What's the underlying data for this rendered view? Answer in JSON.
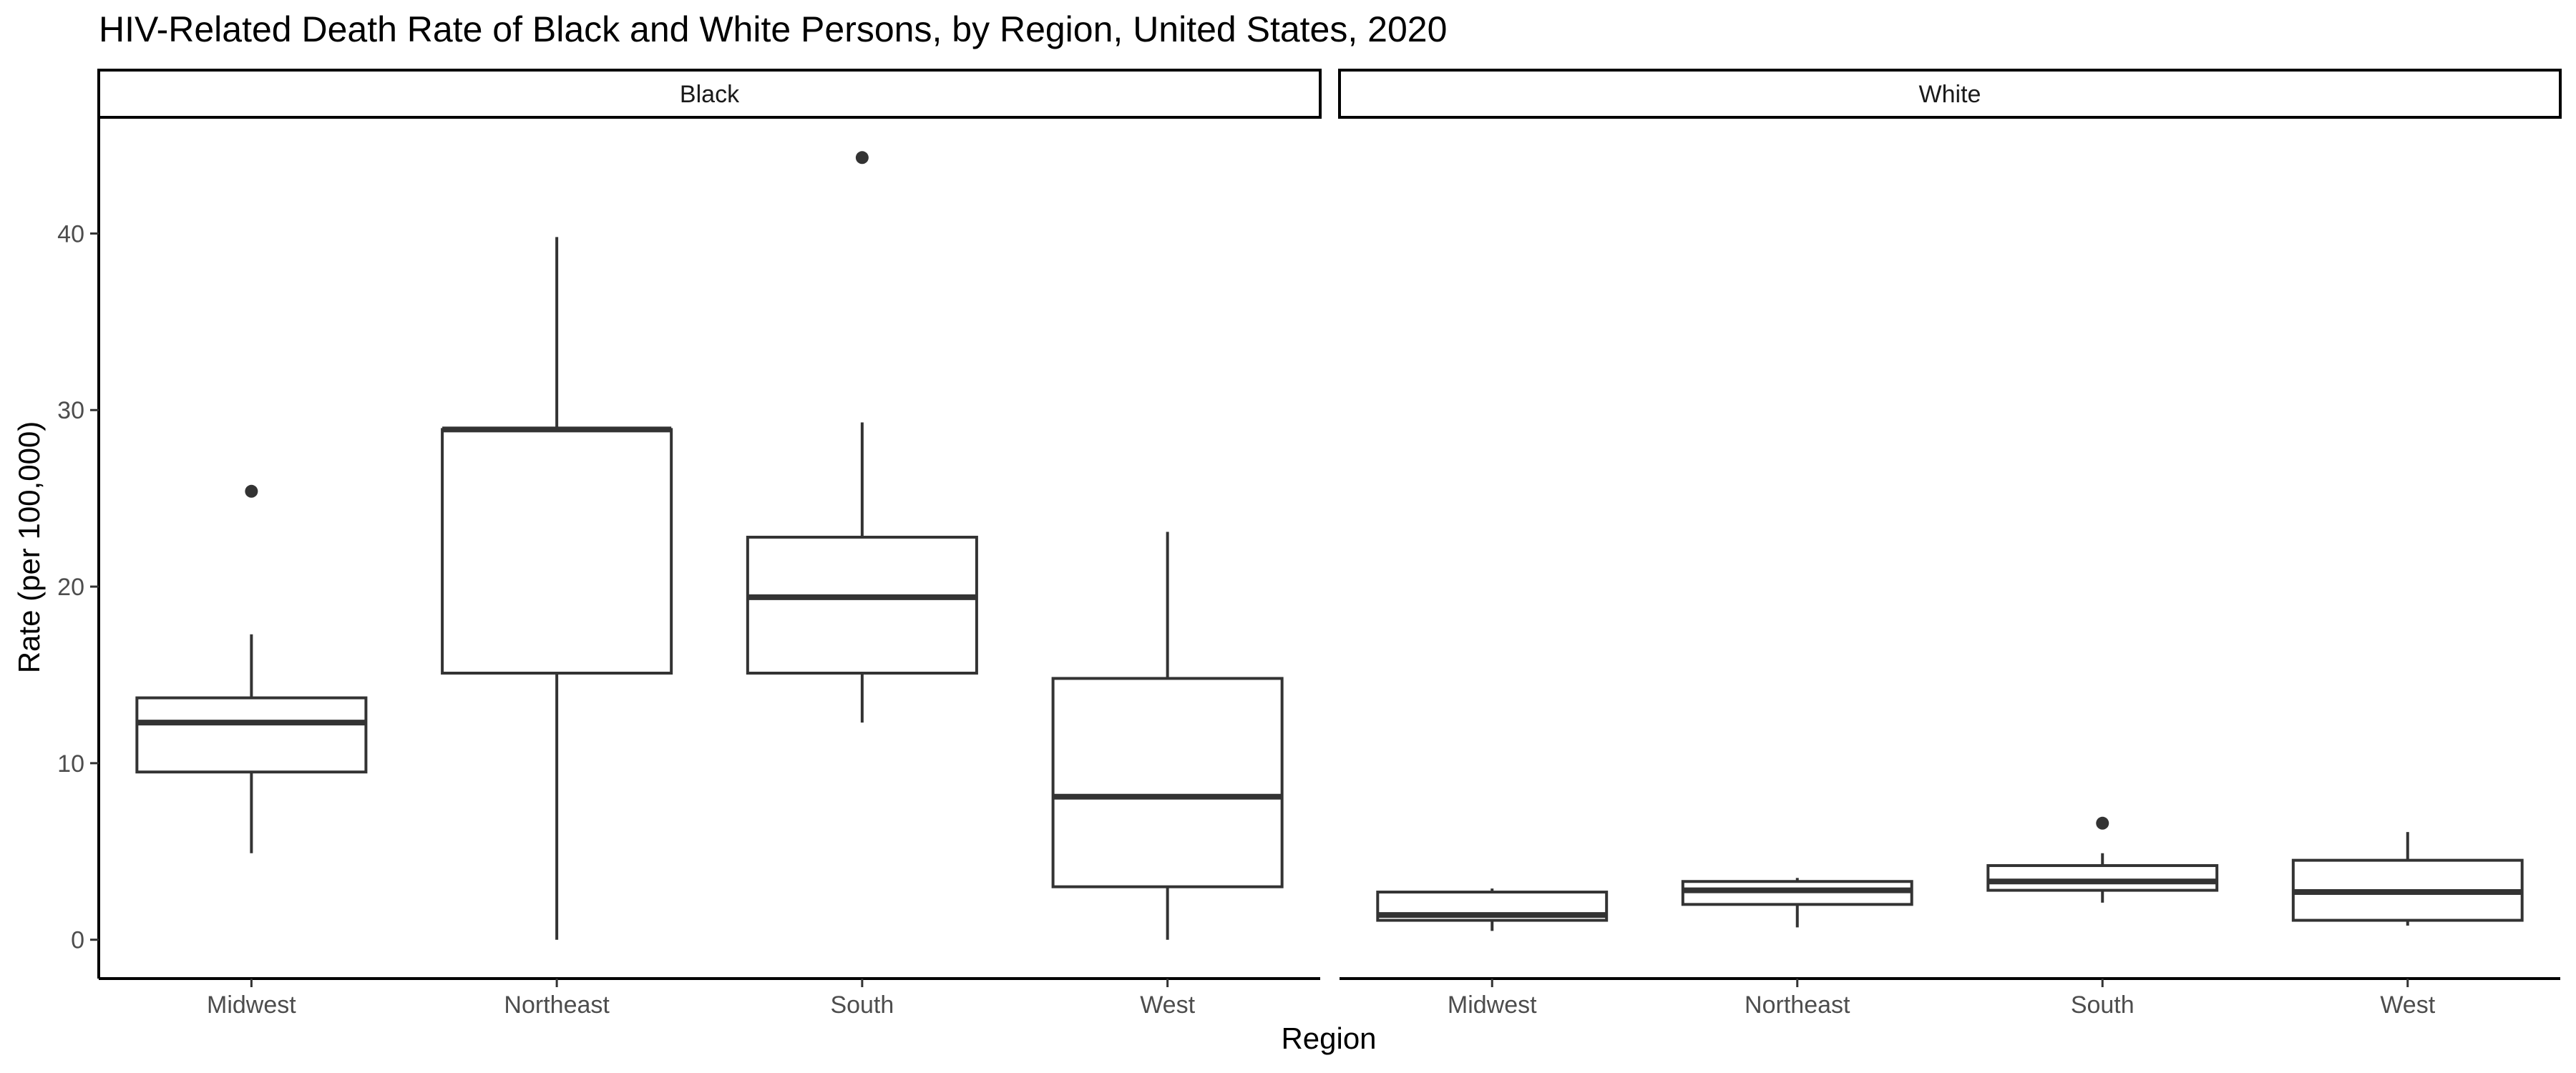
{
  "chart_data": {
    "type": "box",
    "title": "HIV-Related Death Rate of Black and White Persons, by Region, United States, 2020",
    "xlabel": "Region",
    "ylabel": "Rate (per 100,000)",
    "ylim": [
      -2.2,
      46.5
    ],
    "yticks": [
      0,
      10,
      20,
      30,
      40
    ],
    "grid": false,
    "categories": [
      "Midwest",
      "Northeast",
      "South",
      "West"
    ],
    "facets": [
      {
        "name": "Black",
        "boxes": [
          {
            "category": "Midwest",
            "whisker_low": 4.9,
            "q1": 9.5,
            "median": 12.3,
            "q3": 13.7,
            "whisker_high": 17.3,
            "outliers": [
              25.4
            ]
          },
          {
            "category": "Northeast",
            "whisker_low": 0.0,
            "q1": 15.1,
            "median": 28.9,
            "q3": 28.9,
            "whisker_high": 39.8,
            "outliers": []
          },
          {
            "category": "South",
            "whisker_low": 12.3,
            "q1": 15.1,
            "median": 19.4,
            "q3": 22.8,
            "whisker_high": 29.3,
            "outliers": [
              44.3
            ]
          },
          {
            "category": "West",
            "whisker_low": 0.0,
            "q1": 3.0,
            "median": 8.1,
            "q3": 14.8,
            "whisker_high": 23.1,
            "outliers": []
          }
        ]
      },
      {
        "name": "White",
        "boxes": [
          {
            "category": "Midwest",
            "whisker_low": 0.5,
            "q1": 1.1,
            "median": 1.4,
            "q3": 2.7,
            "whisker_high": 2.9,
            "outliers": []
          },
          {
            "category": "Northeast",
            "whisker_low": 0.7,
            "q1": 2.0,
            "median": 2.8,
            "q3": 3.3,
            "whisker_high": 3.5,
            "outliers": []
          },
          {
            "category": "South",
            "whisker_low": 2.1,
            "q1": 2.8,
            "median": 3.3,
            "q3": 4.2,
            "whisker_high": 4.9,
            "outliers": [
              6.6
            ]
          },
          {
            "category": "West",
            "whisker_low": 0.8,
            "q1": 1.1,
            "median": 2.7,
            "q3": 4.5,
            "whisker_high": 6.1,
            "outliers": []
          }
        ]
      }
    ]
  }
}
